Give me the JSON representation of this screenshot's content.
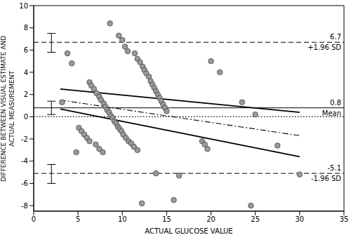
{
  "chart_data": {
    "type": "scatter",
    "x_label": "ACTUAL GLUCOSE VALUE",
    "y_label": [
      "DIFFERENCE BETWEEN VISUAL ESTIMATE AND",
      "ACTUAL MEASUREMENT"
    ],
    "xlim": [
      0,
      35
    ],
    "xticks": [
      0,
      5,
      10,
      15,
      20,
      25,
      30,
      35
    ],
    "ylim": [
      -8.5,
      10
    ],
    "yticks": [
      -8,
      -6,
      -4,
      -2,
      0,
      2,
      4,
      6,
      8,
      10
    ],
    "color": "#9a9a9a",
    "marker": "circle",
    "x": [
      3.2,
      3.8,
      4.3,
      4.8,
      5.1,
      5.4,
      5.7,
      6.0,
      6.3,
      7.0,
      7.4,
      7.8,
      6.3,
      6.5,
      6.8,
      7.1,
      7.4,
      7.6,
      7.9,
      8.1,
      8.3,
      8.5,
      8.7,
      8.9,
      9.1,
      9.3,
      9.5,
      9.7,
      9.9,
      10.1,
      10.4,
      10.7,
      11.0,
      11.3,
      11.7,
      8.6,
      9.6,
      10.0,
      10.3,
      10.6,
      11.4,
      11.7,
      12.0,
      12.3,
      12.5,
      12.7,
      13.0,
      13.2,
      13.4,
      13.6,
      13.8,
      14.0,
      14.2,
      14.4,
      14.6,
      14.8,
      15.0,
      12.2,
      13.8,
      15.8,
      16.4,
      19.0,
      19.3,
      19.6,
      20.0,
      21.0,
      23.5,
      24.5,
      25.0,
      27.5,
      30.0
    ],
    "values": [
      1.3,
      5.7,
      4.8,
      -3.2,
      -1.0,
      -1.3,
      -1.6,
      -1.9,
      -2.2,
      -2.5,
      -2.9,
      -3.2,
      3.1,
      2.8,
      2.5,
      2.1,
      1.8,
      1.5,
      1.2,
      0.9,
      0.6,
      0.4,
      0.1,
      -0.1,
      -0.4,
      -0.6,
      -0.9,
      -1.1,
      -1.3,
      -1.6,
      -1.9,
      -2.2,
      -2.4,
      -2.7,
      -3.0,
      8.4,
      7.3,
      6.9,
      6.3,
      5.9,
      5.7,
      5.2,
      4.9,
      4.5,
      4.2,
      3.9,
      3.6,
      3.2,
      2.9,
      2.6,
      2.3,
      2.0,
      1.7,
      1.4,
      1.1,
      0.8,
      0.5,
      -7.8,
      -5.1,
      -7.5,
      -5.3,
      -2.2,
      -2.5,
      -2.9,
      5.0,
      4.0,
      1.3,
      -8.0,
      0.2,
      -2.6,
      -5.2
    ],
    "reference_lines": [
      {
        "value": 6.7,
        "label": "+1.96 SD",
        "line_style": "dashed"
      },
      {
        "value": 0.8,
        "label": "Mean",
        "line_style": "solid"
      },
      {
        "value": -5.1,
        "label": "-1.96 SD",
        "line_style": "dashed"
      },
      {
        "value": 0,
        "line_style": "dotted"
      }
    ],
    "regression_lines": [
      {
        "x": [
          3,
          30
        ],
        "values": [
          2.5,
          0.4
        ],
        "line_style": "solid"
      },
      {
        "x": [
          3,
          30
        ],
        "values": [
          0.7,
          -3.6
        ],
        "line_style": "solid"
      },
      {
        "x": [
          3,
          30
        ],
        "values": [
          1.5,
          -1.7
        ],
        "line_style": "dashdot"
      }
    ],
    "confidence_intervals": [
      {
        "x": 2,
        "low": 5.8,
        "high": 7.5
      },
      {
        "x": 2,
        "low": 0.2,
        "high": 1.4
      },
      {
        "x": 2,
        "low": -6.0,
        "high": -4.3
      }
    ]
  }
}
